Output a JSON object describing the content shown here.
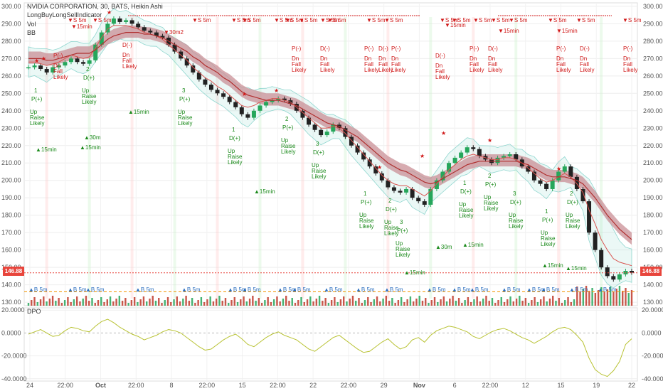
{
  "header": {
    "title": "NVIDIA CORPORATION, 30, BATS, Heikin Ashi",
    "indicator": "LongBuyLongSellIndicator",
    "vol": "Vol",
    "bb": "BB",
    "dpo": "DPO"
  },
  "last_price": "146.88",
  "colors": {
    "up": "#26a65b",
    "down": "#c0392b",
    "signal_up": "#1b8a1b",
    "signal_down": "#d01818",
    "dpo": "#b8c232",
    "ribbon": "#c98f95",
    "cloud": "#8fd6cf",
    "price_box": "#e8453c"
  },
  "chart_data": [
    {
      "type": "line",
      "panel": "price",
      "title": "",
      "xlabel": "",
      "ylabel": "",
      "x_tick_labels": [
        "24",
        "22:00",
        "Oct",
        "22:00",
        "8",
        "22:00",
        "15",
        "22:00",
        "22",
        "22:00",
        "29",
        "Nov",
        "6",
        "22:00",
        "12",
        "15",
        "19",
        "22"
      ],
      "y_ticks": [
        130,
        140,
        150,
        160,
        170,
        180,
        190,
        200,
        210,
        220,
        230,
        240,
        250,
        260,
        270,
        280,
        290,
        300
      ],
      "ylim": [
        128,
        302
      ],
      "grid": true,
      "series": [
        {
          "values": [
            265,
            266,
            264,
            262,
            265,
            266,
            268,
            270,
            268,
            267,
            269,
            278,
            285,
            290,
            293,
            291,
            292,
            290,
            288,
            286,
            285,
            283,
            282,
            278,
            274,
            270,
            266,
            262,
            258,
            255,
            252,
            250,
            248,
            245,
            242,
            238,
            236,
            240,
            243,
            245,
            246,
            247,
            246,
            244,
            240,
            236,
            232,
            229,
            226,
            228,
            232,
            230,
            225,
            220,
            216,
            212,
            208,
            204,
            200,
            196,
            194,
            193,
            195,
            190,
            188,
            186,
            195,
            200,
            205,
            210,
            213,
            216,
            219,
            218,
            214,
            212,
            210,
            213,
            214,
            215,
            212,
            208,
            205,
            200,
            198,
            195,
            200,
            205,
            208,
            202,
            195,
            188,
            170,
            160,
            150,
            145,
            143,
            146,
            148,
            147
          ]
        },
        {
          "values": [
            268,
            268,
            267,
            266,
            267,
            268,
            270,
            272,
            271,
            270,
            271,
            276,
            282,
            287,
            289,
            289,
            289,
            288,
            287,
            285,
            284,
            283,
            281,
            278,
            275,
            272,
            269,
            265,
            262,
            259,
            257,
            254,
            252,
            249,
            246,
            243,
            242,
            243,
            245,
            246,
            247,
            247,
            246,
            245,
            242,
            239,
            236,
            233,
            230,
            230,
            231,
            230,
            227,
            223,
            219,
            215,
            211,
            207,
            203,
            200,
            198,
            197,
            197,
            195,
            193,
            191,
            194,
            198,
            202,
            206,
            209,
            212,
            214,
            215,
            214,
            213,
            212,
            212,
            213,
            213,
            212,
            210,
            207,
            204,
            201,
            199,
            200,
            202,
            204,
            202,
            198,
            193,
            183,
            175,
            166,
            160,
            155,
            153,
            152,
            151
          ]
        },
        {
          "values": [
            270,
            270,
            270,
            269,
            269,
            270,
            271,
            272,
            273,
            273,
            273,
            275,
            278,
            281,
            283,
            284,
            285,
            285,
            285,
            284,
            284,
            283,
            282,
            280,
            278,
            276,
            274,
            271,
            269,
            266,
            264,
            262,
            259,
            257,
            254,
            251,
            249,
            248,
            247,
            246,
            246,
            246,
            245,
            244,
            243,
            241,
            239,
            237,
            235,
            233,
            232,
            231,
            229,
            227,
            225,
            222,
            219,
            216,
            213,
            210,
            208,
            206,
            205,
            203,
            201,
            199,
            198,
            199,
            201,
            203,
            205,
            207,
            209,
            210,
            211,
            211,
            211,
            211,
            211,
            211,
            211,
            210,
            209,
            207,
            205,
            203,
            202,
            202,
            202,
            201,
            200,
            198,
            194,
            190,
            185,
            180,
            176,
            172,
            169,
            166
          ]
        }
      ]
    },
    {
      "type": "line",
      "panel": "dpo",
      "title": "",
      "xlabel": "",
      "ylabel": "",
      "y_ticks": [
        20,
        0,
        -20,
        -40
      ],
      "y_tick_labels": [
        "20.0000",
        "0.0000",
        "-20.0000",
        "-40.0000"
      ],
      "ylim": [
        -42,
        22
      ],
      "series": [
        {
          "values": [
            -1,
            1,
            3,
            0,
            -3,
            -2,
            2,
            5,
            4,
            2,
            1,
            6,
            10,
            12,
            9,
            5,
            2,
            -1,
            -3,
            -6,
            -4,
            -2,
            1,
            3,
            2,
            0,
            -4,
            -8,
            -12,
            -15,
            -14,
            -10,
            -6,
            -3,
            -1,
            -5,
            -10,
            -12,
            -8,
            -4,
            -1,
            1,
            -2,
            -4,
            -6,
            -10,
            -14,
            -16,
            -12,
            -8,
            -4,
            -2,
            -6,
            -10,
            -14,
            -17,
            -16,
            -12,
            -8,
            -5,
            -10,
            -14,
            -12,
            -6,
            -4,
            -8,
            -2,
            2,
            4,
            6,
            5,
            3,
            1,
            -3,
            -5,
            -2,
            1,
            3,
            4,
            2,
            -1,
            -4,
            -6,
            -9,
            -6,
            -3,
            1,
            4,
            5,
            3,
            -2,
            -8,
            -22,
            -32,
            -36,
            -38,
            -33,
            -25,
            -10,
            -5
          ]
        }
      ]
    }
  ],
  "signals": {
    "tf": [
      "15min",
      "30m",
      "15min",
      "15min",
      "15min",
      "15min",
      "30m",
      "15min",
      "15min",
      "15min",
      "15min",
      "15min",
      "15min",
      "15min",
      "30m2",
      "15min",
      "30m",
      "15min",
      "5m",
      "5m",
      "5m",
      "5m",
      "5m",
      "5m",
      "5m",
      "5m",
      "5m",
      "5m",
      "5m",
      "5m",
      "5m",
      "5m",
      "5m",
      "5m",
      "5m",
      "5m",
      "5m",
      "5m",
      "5m",
      "5m",
      "5m",
      "5m",
      "5m",
      "5m",
      "5m",
      "5m",
      "5m",
      "5m",
      "5m"
    ],
    "up_text": [
      "Up",
      "Raise",
      "Likely"
    ],
    "dn_text": [
      "Dn",
      "Fall",
      "Likely"
    ],
    "pd": [
      "P(+)",
      "D(+)",
      "P(-)",
      "D(-)"
    ],
    "counts": [
      "1",
      "2",
      "3"
    ]
  }
}
